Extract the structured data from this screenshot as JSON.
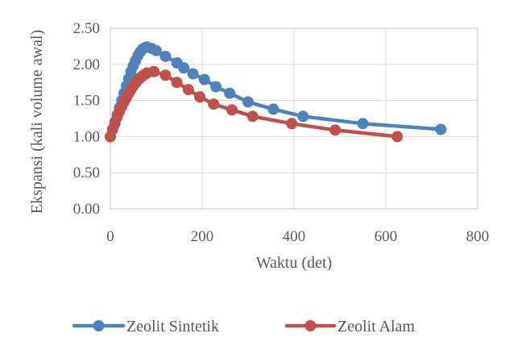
{
  "chart_data": {
    "type": "line",
    "title": "",
    "xlabel": "Waktu (det)",
    "ylabel": "Ekspansi (kali volume awal)",
    "xlim": [
      0,
      800
    ],
    "ylim": [
      0,
      2.5
    ],
    "x_ticks": [
      0,
      200,
      400,
      600,
      800
    ],
    "y_ticks": [
      0,
      0.5,
      1,
      1.5,
      2,
      2.5
    ],
    "x_tick_labels": [
      "0",
      "200",
      "400",
      "600",
      "800"
    ],
    "y_tick_labels": [
      "0.00",
      "0.50",
      "1.00",
      "1.50",
      "2.00",
      "2.50"
    ],
    "grid": true,
    "legend_position": "bottom",
    "series": [
      {
        "name": "Zeolit Sintetik",
        "color": "#4f81bd",
        "marker": "circle",
        "x": [
          0,
          5,
          10,
          15,
          20,
          25,
          30,
          35,
          40,
          45,
          50,
          55,
          60,
          65,
          70,
          75,
          80,
          90,
          100,
          120,
          145,
          160,
          180,
          205,
          230,
          260,
          300,
          355,
          420,
          550,
          720
        ],
        "y": [
          1.0,
          1.1,
          1.2,
          1.3,
          1.4,
          1.5,
          1.6,
          1.7,
          1.8,
          1.9,
          1.98,
          2.05,
          2.12,
          2.17,
          2.21,
          2.23,
          2.24,
          2.22,
          2.19,
          2.11,
          2.02,
          1.95,
          1.87,
          1.79,
          1.69,
          1.6,
          1.48,
          1.38,
          1.28,
          1.18,
          1.1
        ]
      },
      {
        "name": "Zeolit Alam",
        "color": "#c0504d",
        "marker": "circle",
        "x": [
          0,
          5,
          10,
          15,
          20,
          25,
          30,
          35,
          40,
          45,
          50,
          55,
          60,
          65,
          70,
          75,
          80,
          95,
          120,
          145,
          170,
          195,
          225,
          265,
          310,
          395,
          490,
          625
        ],
        "y": [
          1.0,
          1.1,
          1.18,
          1.27,
          1.35,
          1.42,
          1.48,
          1.54,
          1.6,
          1.65,
          1.7,
          1.74,
          1.78,
          1.81,
          1.84,
          1.86,
          1.88,
          1.9,
          1.85,
          1.75,
          1.65,
          1.55,
          1.45,
          1.37,
          1.28,
          1.18,
          1.09,
          1.0
        ]
      }
    ]
  }
}
